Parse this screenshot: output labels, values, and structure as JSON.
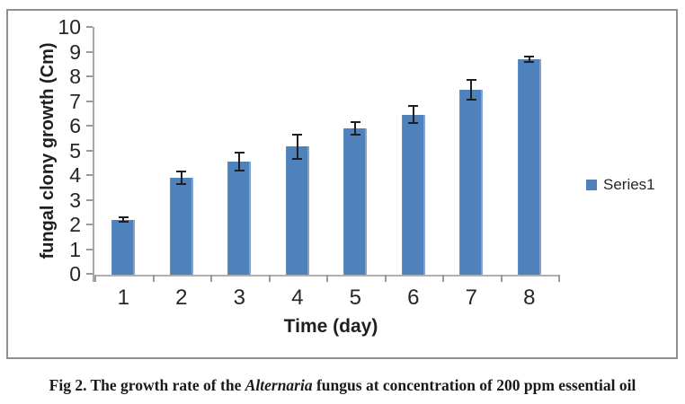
{
  "colors": {
    "bar": "#4F81BD",
    "axis_line": "#b0b0b0",
    "y_axis_line": "#a6a6a6",
    "tick": "#9a9a9a",
    "text": "#262626",
    "error_bar": "#1f1f1f",
    "frame_border": "#8f8f8f"
  },
  "axes": {
    "y_title": "fungal clony growth (Cm)",
    "x_title": "Time (day)"
  },
  "legend": {
    "label": "Series1"
  },
  "caption": {
    "prefix": "Fig 2. The growth rate of the ",
    "italic": "Alternaria",
    "suffix": " fungus at concentration of 200 ppm essential oil"
  },
  "chart_data": {
    "type": "bar",
    "title": "",
    "xlabel": "Time (day)",
    "ylabel": "fungal clony growth (Cm)",
    "categories": [
      "1",
      "2",
      "3",
      "4",
      "5",
      "6",
      "7",
      "8"
    ],
    "series": [
      {
        "name": "Series1",
        "values": [
          2.2,
          3.9,
          4.55,
          5.15,
          5.9,
          6.45,
          7.45,
          8.7
        ],
        "error": [
          0.1,
          0.25,
          0.35,
          0.5,
          0.25,
          0.35,
          0.4,
          0.1
        ]
      }
    ],
    "ylim": [
      0,
      10
    ],
    "ytick_interval": 1,
    "grid": false,
    "legend_position": "right",
    "bar_color": "#4F81BD"
  }
}
